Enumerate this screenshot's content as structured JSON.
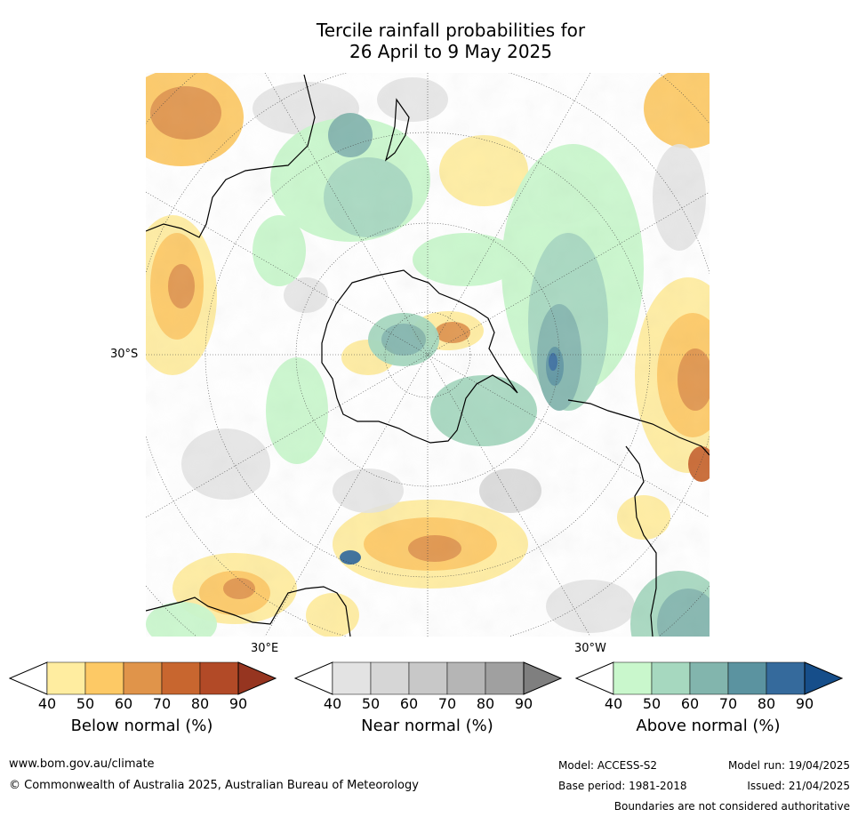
{
  "title_line1": "Tercile rainfall probabilities for",
  "title_line2": "26 April to 9 May 2025",
  "map": {
    "lat_label": "30°S",
    "lon_label_east": "30°E",
    "lon_label_west": "30°W"
  },
  "colorbars": [
    {
      "title": "Below normal (%)",
      "ticks": [
        "40",
        "50",
        "60",
        "70",
        "80",
        "90"
      ],
      "colors": [
        "#ffffff",
        "#ffeda0",
        "#fdc965",
        "#e0944a",
        "#c8662f",
        "#b24a27",
        "#963520"
      ]
    },
    {
      "title": "Near normal (%)",
      "ticks": [
        "40",
        "50",
        "60",
        "70",
        "80",
        "90"
      ],
      "colors": [
        "#ffffff",
        "#e3e3e3",
        "#d6d6d6",
        "#c8c8c8",
        "#b5b5b5",
        "#a0a0a0",
        "#7f7f7f"
      ]
    },
    {
      "title": "Above normal (%)",
      "ticks": [
        "40",
        "50",
        "60",
        "70",
        "80",
        "90"
      ],
      "colors": [
        "#ffffff",
        "#c9f7cc",
        "#a6d8bf",
        "#82b5ad",
        "#5b93a0",
        "#356a9c",
        "#164e8a"
      ]
    }
  ],
  "footer": {
    "website": "www.bom.gov.au/climate",
    "copyright": "© Commonwealth of Australia 2025, Australian Bureau of Meteorology",
    "model": "Model: ACCESS-S2",
    "base_period": "Base period: 1981-2018",
    "model_run": "Model run: 19/04/2025",
    "issued": "Issued: 21/04/2025",
    "disclaimer": "Boundaries are not considered authoritative"
  }
}
